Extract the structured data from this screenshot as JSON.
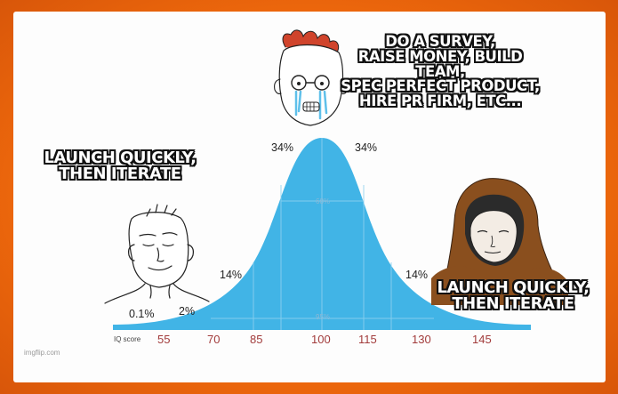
{
  "captions": {
    "left": "LAUNCH QUICKLY,\nTHEN ITERATE",
    "top": "DO A SURVEY,\nRAISE MONEY, BUILD TEAM,\nSPEC PERFECT PRODUCT,\nHIRE PR FIRM, ETC...",
    "right": "LAUNCH QUICKLY,\nTHEN ITERATE"
  },
  "chart": {
    "axis_label": "IQ score",
    "ticks": [
      "55",
      "70",
      "85",
      "100",
      "115",
      "130",
      "145"
    ],
    "percentages": {
      "far_left": "0.1%",
      "left_tail": "2%",
      "left_mid": "14%",
      "left_center": "34%",
      "right_center": "34%",
      "right_mid": "14%",
      "band_68": "68%",
      "band_95": "95%"
    },
    "curve_color": "#41b4e6"
  },
  "watermark": "imgflip.com",
  "colors": {
    "border": "#f06a0c",
    "curve": "#41b4e6",
    "tick_text": "#a23c3c",
    "hood": "#8a4f1e"
  }
}
